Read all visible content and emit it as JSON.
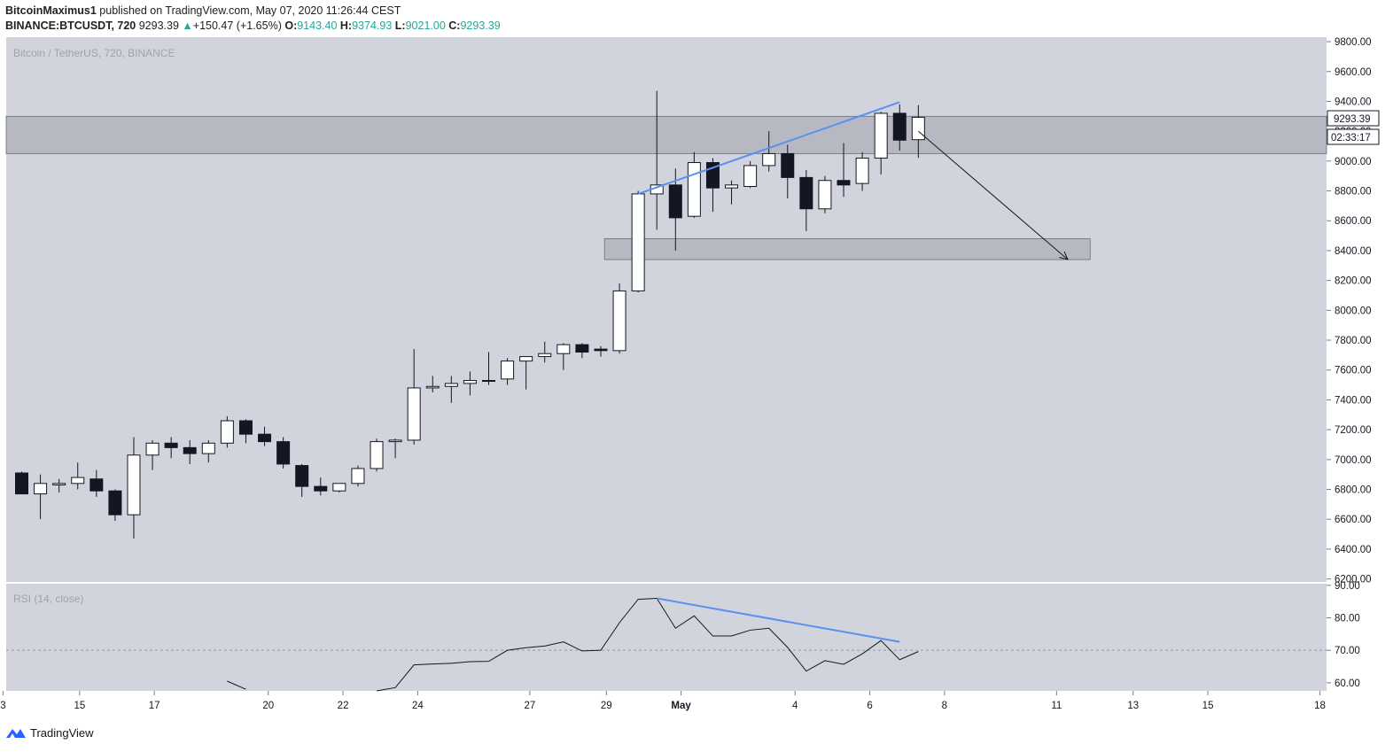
{
  "header": {
    "author": "BitcoinMaximus1",
    "published": "published on TradingView.com, May 07, 2020 11:26:44 CEST",
    "symbol": "BINANCE:BTCUSDT, 720",
    "last": "9293.39",
    "arrow": "▲",
    "change": "+150.47 (+1.65%)",
    "o_label": "O:",
    "o_value": "9143.40",
    "h_label": "H:",
    "h_value": "9374.93",
    "l_label": "L:",
    "l_value": "9021.00",
    "c_label": "C:",
    "c_value": "9293.39"
  },
  "pane_title": "Bitcoin / TetherUS, 720, BINANCE",
  "rsi_title": "RSI (14, close)",
  "price_tag": "9293.39",
  "countdown_tag": "02:33:17",
  "brand": "TradingView",
  "colors": {
    "background": "#d1d4dc",
    "up_body": "#ffffff",
    "down_body": "#131722",
    "trendline": "#5b8ff0",
    "zone": "#9598a1"
  },
  "chart_data": [
    {
      "type": "candlestick",
      "title": "Bitcoin / TetherUS, 720, BINANCE",
      "x_tick_labels": [
        "3",
        "15",
        "17",
        "20",
        "22",
        "24",
        "27",
        "29",
        "May",
        "4",
        "6",
        "8",
        "11",
        "13",
        "15",
        "18"
      ],
      "y_tick_labels": [
        "6200.00",
        "6400.00",
        "6600.00",
        "6800.00",
        "7000.00",
        "7200.00",
        "7400.00",
        "7600.00",
        "7800.00",
        "8000.00",
        "8200.00",
        "8400.00",
        "8600.00",
        "8800.00",
        "9000.00",
        "9200.00",
        "9400.00",
        "9600.00",
        "9800.00"
      ],
      "ylim": [
        6180,
        9830
      ],
      "grid": false,
      "last_price": 9293.39,
      "candles": [
        {
          "o": 6910,
          "h": 6920,
          "l": 6770,
          "c": 6770
        },
        {
          "o": 6770,
          "h": 6900,
          "l": 6600,
          "c": 6840
        },
        {
          "o": 6830,
          "h": 6870,
          "l": 6780,
          "c": 6840
        },
        {
          "o": 6840,
          "h": 6980,
          "l": 6800,
          "c": 6880
        },
        {
          "o": 6870,
          "h": 6930,
          "l": 6750,
          "c": 6790
        },
        {
          "o": 6790,
          "h": 6800,
          "l": 6590,
          "c": 6630
        },
        {
          "o": 6630,
          "h": 7150,
          "l": 6470,
          "c": 7030
        },
        {
          "o": 7030,
          "h": 7130,
          "l": 6930,
          "c": 7110
        },
        {
          "o": 7110,
          "h": 7150,
          "l": 7010,
          "c": 7080
        },
        {
          "o": 7080,
          "h": 7130,
          "l": 6970,
          "c": 7040
        },
        {
          "o": 7040,
          "h": 7130,
          "l": 6980,
          "c": 7110
        },
        {
          "o": 7110,
          "h": 7290,
          "l": 7080,
          "c": 7260
        },
        {
          "o": 7260,
          "h": 7270,
          "l": 7110,
          "c": 7170
        },
        {
          "o": 7170,
          "h": 7220,
          "l": 7090,
          "c": 7120
        },
        {
          "o": 7120,
          "h": 7150,
          "l": 6940,
          "c": 6970
        },
        {
          "o": 6960,
          "h": 6970,
          "l": 6750,
          "c": 6820
        },
        {
          "o": 6820,
          "h": 6880,
          "l": 6760,
          "c": 6790
        },
        {
          "o": 6790,
          "h": 6840,
          "l": 6780,
          "c": 6840
        },
        {
          "o": 6840,
          "h": 6960,
          "l": 6820,
          "c": 6940
        },
        {
          "o": 6940,
          "h": 7140,
          "l": 6920,
          "c": 7120
        },
        {
          "o": 7120,
          "h": 7140,
          "l": 7010,
          "c": 7130
        },
        {
          "o": 7130,
          "h": 7740,
          "l": 7100,
          "c": 7480
        },
        {
          "o": 7480,
          "h": 7560,
          "l": 7450,
          "c": 7490
        },
        {
          "o": 7490,
          "h": 7560,
          "l": 7380,
          "c": 7510
        },
        {
          "o": 7510,
          "h": 7590,
          "l": 7430,
          "c": 7530
        },
        {
          "o": 7530,
          "h": 7720,
          "l": 7500,
          "c": 7530
        },
        {
          "o": 7540,
          "h": 7680,
          "l": 7500,
          "c": 7660
        },
        {
          "o": 7660,
          "h": 7690,
          "l": 7470,
          "c": 7690
        },
        {
          "o": 7690,
          "h": 7790,
          "l": 7650,
          "c": 7710
        },
        {
          "o": 7710,
          "h": 7780,
          "l": 7600,
          "c": 7770
        },
        {
          "o": 7770,
          "h": 7780,
          "l": 7680,
          "c": 7720
        },
        {
          "o": 7740,
          "h": 7760,
          "l": 7690,
          "c": 7730
        },
        {
          "o": 7730,
          "h": 8180,
          "l": 7710,
          "c": 8130
        },
        {
          "o": 8130,
          "h": 8800,
          "l": 8120,
          "c": 8780
        },
        {
          "o": 8780,
          "h": 9470,
          "l": 8540,
          "c": 8840
        },
        {
          "o": 8840,
          "h": 8950,
          "l": 8400,
          "c": 8620
        },
        {
          "o": 8630,
          "h": 9060,
          "l": 8620,
          "c": 8990
        },
        {
          "o": 8990,
          "h": 9020,
          "l": 8660,
          "c": 8820
        },
        {
          "o": 8820,
          "h": 8870,
          "l": 8710,
          "c": 8840
        },
        {
          "o": 8830,
          "h": 9000,
          "l": 8820,
          "c": 8970
        },
        {
          "o": 8970,
          "h": 9200,
          "l": 8930,
          "c": 9050
        },
        {
          "o": 9050,
          "h": 9110,
          "l": 8750,
          "c": 8890
        },
        {
          "o": 8890,
          "h": 8940,
          "l": 8530,
          "c": 8680
        },
        {
          "o": 8680,
          "h": 8900,
          "l": 8650,
          "c": 8870
        },
        {
          "o": 8870,
          "h": 9120,
          "l": 8760,
          "c": 8840
        },
        {
          "o": 8850,
          "h": 9060,
          "l": 8800,
          "c": 9020
        },
        {
          "o": 9020,
          "h": 9330,
          "l": 8910,
          "c": 9320
        },
        {
          "o": 9320,
          "h": 9380,
          "l": 9070,
          "c": 9140
        },
        {
          "o": 9143.4,
          "h": 9374.93,
          "l": 9021,
          "c": 9293.39
        }
      ],
      "resistance_zone": [
        9050,
        9300
      ],
      "support_zone": [
        8340,
        8480
      ],
      "trendline": [
        {
          "candle": 33,
          "price": 8780
        },
        {
          "candle": 47,
          "price": 9395
        }
      ],
      "projection_arrow": [
        {
          "candle": 48,
          "price": 9200
        },
        {
          "candle": 56,
          "price": 8340
        }
      ]
    },
    {
      "type": "line",
      "title": "RSI (14, close)",
      "y_tick_labels": [
        "60.00",
        "70.00",
        "80.00",
        "90.00"
      ],
      "ylim": [
        57.5,
        90.5
      ],
      "reference_line": 70,
      "values": [
        null,
        null,
        null,
        null,
        null,
        null,
        null,
        null,
        null,
        null,
        null,
        60.5,
        58.0,
        null,
        null,
        null,
        null,
        null,
        null,
        55.0,
        58.5,
        65.5,
        65.8,
        66.0,
        66.5,
        66.6,
        70.0,
        70.8,
        71.3,
        72.6,
        69.8,
        70.0,
        78.5,
        85.7,
        86.0,
        76.8,
        80.6,
        74.4,
        74.4,
        76.2,
        76.8,
        70.9,
        63.6,
        66.8,
        65.7,
        68.9,
        73.0,
        67.1,
        69.6
      ],
      "divergence_line": [
        {
          "candle": 34,
          "value": 86.0
        },
        {
          "candle": 47,
          "value": 72.6
        }
      ]
    }
  ]
}
